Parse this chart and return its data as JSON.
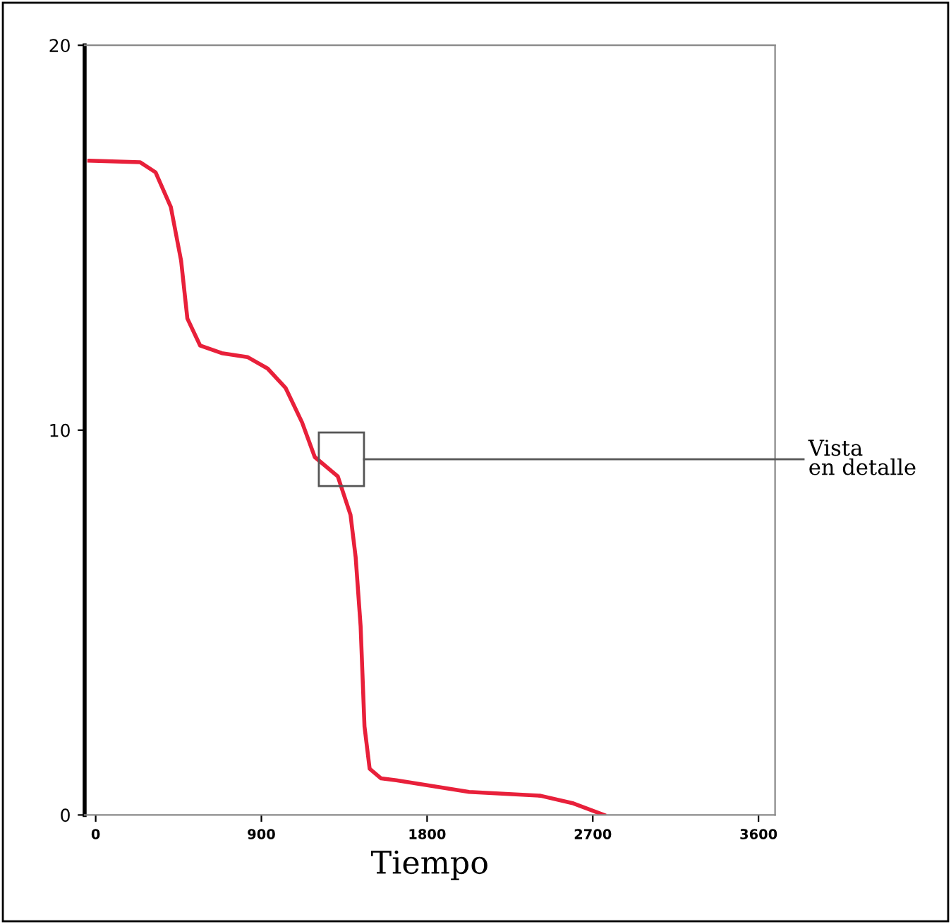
{
  "chart_data": {
    "type": "line",
    "xlabel": "Tiempo",
    "xlim": [
      -60,
      3690
    ],
    "ylim": [
      0,
      20
    ],
    "xticks": [
      0,
      900,
      1800,
      2700,
      3600
    ],
    "yticks": [
      0,
      10,
      20
    ],
    "grid": false,
    "legend": false,
    "marker": "none",
    "line_style": "solid",
    "x": [
      -35,
      242,
      325,
      408,
      464,
      498,
      567,
      685,
      824,
      934,
      1031,
      1121,
      1190,
      1315,
      1384,
      1412,
      1439,
      1460,
      1488,
      1550,
      1633,
      2028,
      2415,
      2595,
      2761
    ],
    "series": [
      {
        "color": "#e8203a",
        "values": [
          17.0,
          16.96,
          16.7,
          15.8,
          14.4,
          12.9,
          12.2,
          12.0,
          11.9,
          11.6,
          11.1,
          10.2,
          9.3,
          8.8,
          7.8,
          6.7,
          4.9,
          2.3,
          1.2,
          0.95,
          0.9,
          0.6,
          0.5,
          0.3,
          0.0
        ]
      }
    ],
    "annotations": [
      "Vista\nen detalle"
    ]
  }
}
